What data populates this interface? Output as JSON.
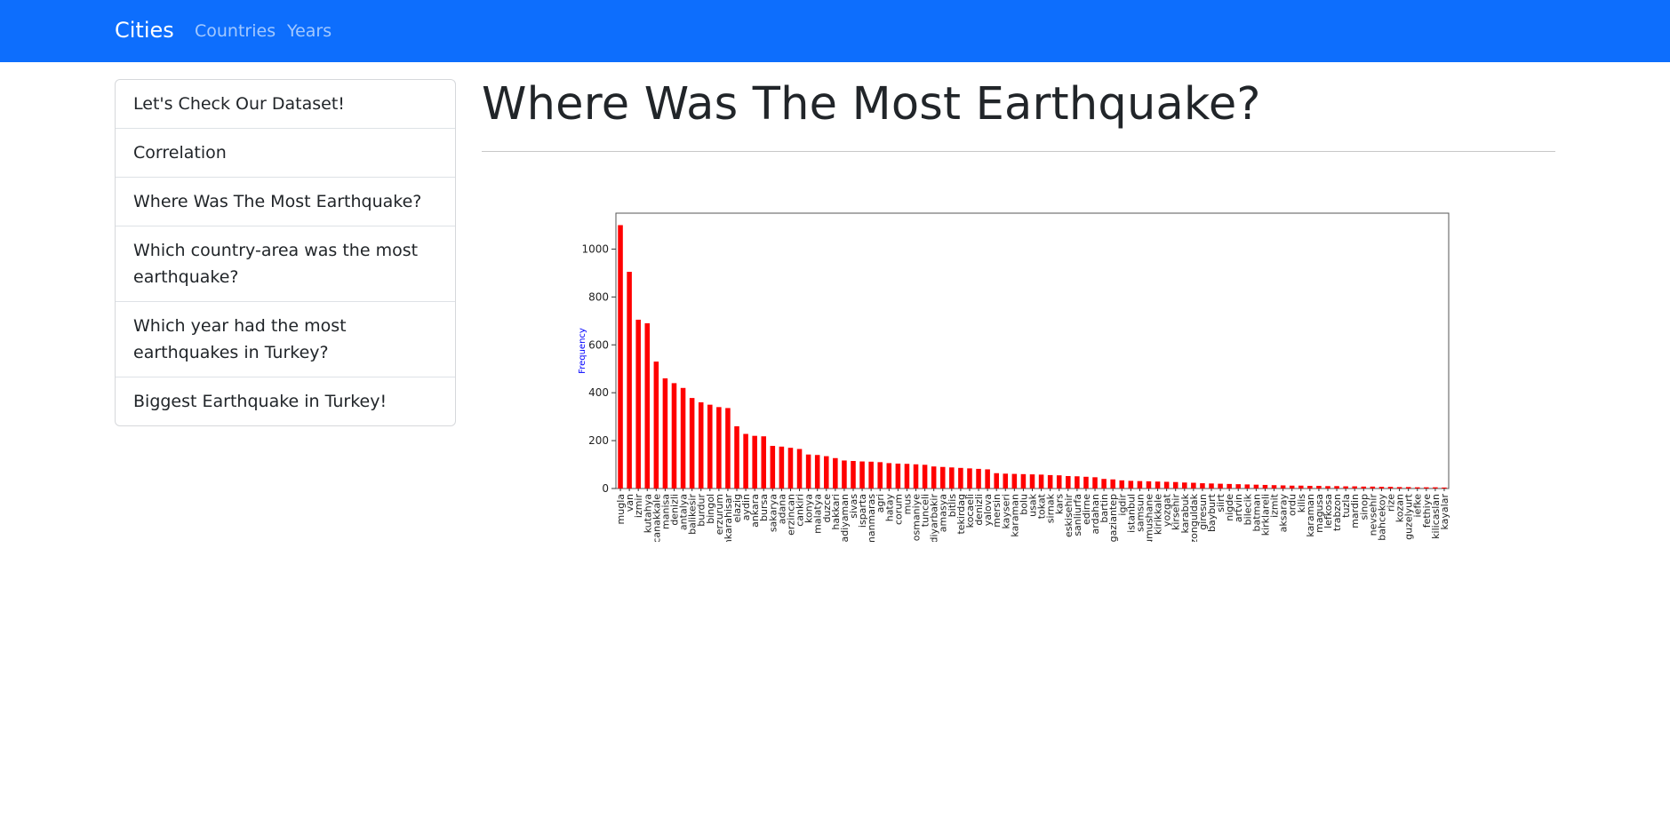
{
  "navbar": {
    "brand": "Cities",
    "links": [
      "Countries",
      "Years"
    ]
  },
  "sidebar": {
    "items": [
      "Let's Check Our Dataset!",
      "Correlation",
      "Where Was The Most Earthquake?",
      "Which country-area was the most earthquake?",
      "Which year had the most earthquakes in Turkey?",
      "Biggest Earthquake in Turkey!"
    ]
  },
  "page": {
    "title": "Where Was The Most Earthquake?"
  },
  "colors": {
    "navbar": "#0d6efd",
    "bar": "#ff0000",
    "ylabel": "#0000ff"
  },
  "chart_data": {
    "type": "bar",
    "title": "",
    "xlabel": "",
    "ylabel": "Frequency",
    "ylim": [
      0,
      1150
    ],
    "yticks": [
      0,
      200,
      400,
      600,
      800,
      1000
    ],
    "grid": false,
    "categories": [
      "mugla",
      "van",
      "izmir",
      "kutahya",
      "canakkale",
      "manisa",
      "denizli",
      "antalya",
      "balikesir",
      "burdur",
      "bingol",
      "erzurum",
      "afyonkarahisar",
      "elazig",
      "aydin",
      "ankara",
      "bursa",
      "sakarya",
      "adana",
      "erzincan",
      "cankiri",
      "konya",
      "malatya",
      "duzce",
      "hakkari",
      "adiyaman",
      "sivas",
      "isparta",
      "kahramanmaras",
      "agri",
      "hatay",
      "corum",
      "mus",
      "osmaniye",
      "tunceli",
      "diyarbakir",
      "amasya",
      "bitlis",
      "tekirdag",
      "kocaeli",
      "denizli",
      "yalova",
      "mersin",
      "kayseri",
      "karaman",
      "bolu",
      "usak",
      "tokat",
      "sirnak",
      "kars",
      "eskisehir",
      "sanliurfa",
      "edirne",
      "ardahan",
      "bartin",
      "gaziantep",
      "igdir",
      "istanbul",
      "samsun",
      "gumushane",
      "kirikkale",
      "yozgat",
      "kirsehir",
      "karabuk",
      "zonguldak",
      "giresun",
      "bayburt",
      "siirt",
      "nigde",
      "artvin",
      "bilecik",
      "batman",
      "kirklareli",
      "izmit",
      "aksaray",
      "ordu",
      "kilis",
      "karaman",
      "magusa",
      "lefkosa",
      "trabzon",
      "tuzla",
      "mardin",
      "sinop",
      "nevsehir",
      "bahcekoy",
      "rize",
      "kozan",
      "guzelyurt",
      "iefke",
      "fethiye",
      "kilicaslan",
      "kayalar"
    ],
    "values": [
      1100,
      905,
      705,
      690,
      530,
      460,
      440,
      420,
      378,
      360,
      350,
      340,
      336,
      260,
      228,
      220,
      218,
      178,
      175,
      170,
      165,
      142,
      140,
      135,
      127,
      117,
      115,
      113,
      112,
      110,
      106,
      104,
      103,
      101,
      99,
      92,
      90,
      88,
      86,
      84,
      82,
      80,
      64,
      62,
      61,
      60,
      59,
      58,
      56,
      55,
      52,
      51,
      49,
      47,
      40,
      38,
      34,
      32,
      31,
      30,
      29,
      28,
      27,
      25,
      24,
      22,
      21,
      20,
      19,
      18,
      17,
      16,
      15,
      14,
      13,
      12,
      12,
      11,
      11,
      10,
      10,
      9,
      9,
      8,
      8,
      7,
      7,
      6,
      6,
      5,
      5,
      5,
      4
    ]
  }
}
